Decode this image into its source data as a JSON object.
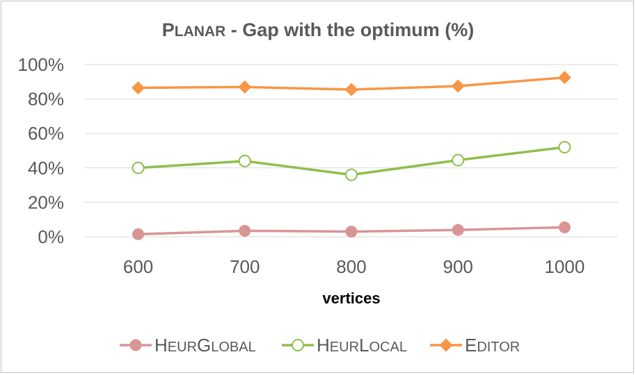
{
  "chart_data": {
    "type": "line",
    "title": {
      "lead": "P",
      "small": "LANAR",
      "rest": " - Gap with the optimum (%)"
    },
    "categories": [
      "600",
      "700",
      "800",
      "900",
      "1000"
    ],
    "xlabel": "vertices",
    "ylabel": "",
    "ylim": [
      0,
      100
    ],
    "yticks": [
      "0%",
      "20%",
      "40%",
      "60%",
      "80%",
      "100%"
    ],
    "grid": true,
    "legend_position": "bottom",
    "series": [
      {
        "name": "HeurGlobal",
        "name_parts": [
          [
            "H",
            "EUR"
          ],
          [
            "G",
            "LOBAL"
          ]
        ],
        "color": "#d99594",
        "marker": "filled-circle",
        "values": [
          1.5,
          3.5,
          3,
          4,
          5.5
        ]
      },
      {
        "name": "HeurLocal",
        "name_parts": [
          [
            "H",
            "EUR"
          ],
          [
            "L",
            "OCAL"
          ]
        ],
        "color": "#8ebf4c",
        "marker": "open-circle",
        "values": [
          40,
          44,
          36,
          44.5,
          52
        ]
      },
      {
        "name": "Editor",
        "name_parts": [
          [
            "E",
            "DITOR"
          ]
        ],
        "color": "#f79646",
        "marker": "diamond",
        "values": [
          86.5,
          87,
          85.5,
          87.5,
          92.5
        ]
      }
    ]
  }
}
